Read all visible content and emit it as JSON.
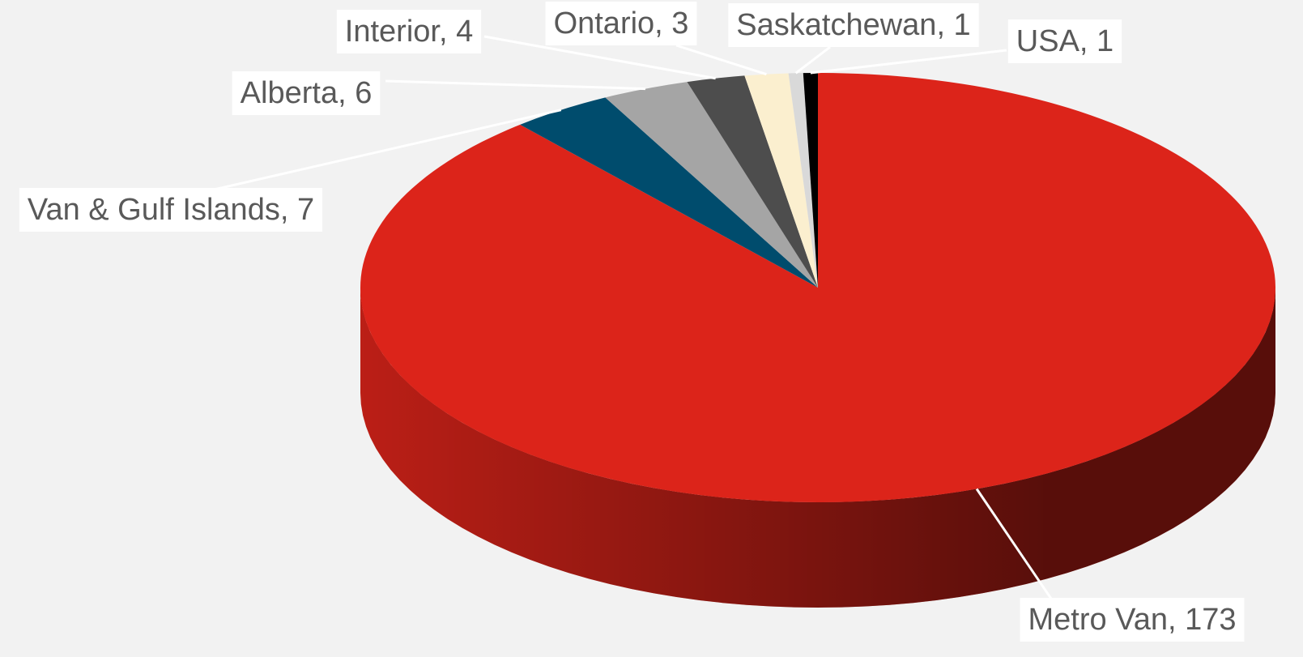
{
  "chart_data": {
    "type": "pie",
    "values": [
      173,
      7,
      6,
      4,
      3,
      1,
      1
    ],
    "value_labels": [
      "Metro Van, 173",
      "Van & Gulf Islands, 7",
      "Alberta, 6",
      "Interior, 4",
      "Ontario, 3",
      "Saskatchewan, 1",
      "USA, 1"
    ],
    "colors": [
      "#dc241a",
      "#004c6d",
      "#a5a5a5",
      "#4d4d4d",
      "#fbefcf",
      "#d9d9d9",
      "#000000"
    ]
  }
}
